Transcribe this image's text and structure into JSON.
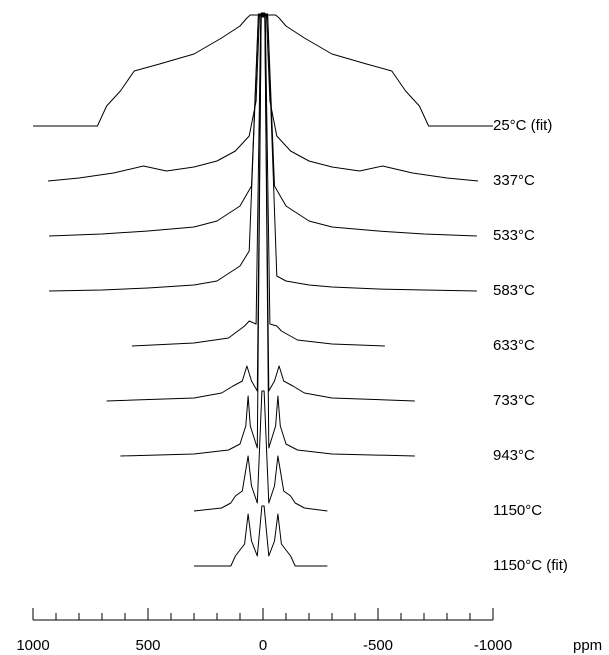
{
  "chart_data": {
    "type": "line",
    "x_label": "ppm",
    "xlim": [
      1000,
      -1000
    ],
    "xticks": [
      1000,
      500,
      0,
      -500,
      -1000
    ],
    "xminorticks": [
      900,
      800,
      700,
      600,
      400,
      300,
      200,
      100,
      -100,
      -200,
      -300,
      -400,
      -600,
      -700,
      -800,
      -900
    ],
    "series": [
      {
        "name": "25°C (fit)",
        "color": "#000000",
        "x": [
          1000,
          720,
          680,
          620,
          560,
          450,
          300,
          180,
          100,
          70,
          55,
          45,
          20,
          0,
          -20,
          -45,
          -55,
          -70,
          -100,
          -180,
          -300,
          -450,
          -560,
          -620,
          -680,
          -720,
          -1000
        ],
        "values": [
          0,
          0,
          20,
          35,
          55,
          62,
          72,
          88,
          100,
          108,
          111,
          111,
          111,
          111,
          111,
          111,
          111,
          108,
          100,
          88,
          72,
          62,
          55,
          35,
          20,
          0,
          0
        ]
      },
      {
        "name": "337°C",
        "color": "#000000",
        "x": [
          935,
          800,
          650,
          520,
          420,
          300,
          200,
          120,
          60,
          30,
          15,
          0,
          -15,
          -30,
          -60,
          -120,
          -200,
          -300,
          -420,
          -520,
          -650,
          -800,
          -935
        ],
        "values": [
          0,
          3,
          8,
          15,
          10,
          14,
          20,
          30,
          45,
          80,
          167,
          167,
          167,
          80,
          45,
          30,
          20,
          14,
          10,
          15,
          8,
          3,
          0
        ]
      },
      {
        "name": "533°C",
        "color": "#000000",
        "x": [
          930,
          700,
          500,
          300,
          200,
          100,
          50,
          20,
          0,
          -20,
          -50,
          -100,
          -200,
          -300,
          -500,
          -700,
          -930
        ],
        "values": [
          0,
          2,
          5,
          9,
          15,
          30,
          50,
          222,
          222,
          222,
          50,
          30,
          15,
          9,
          5,
          2,
          0
        ]
      },
      {
        "name": "583°C",
        "color": "#000000",
        "x": [
          930,
          700,
          500,
          300,
          200,
          100,
          60,
          20,
          0,
          -20,
          -60,
          -100,
          -200,
          -300,
          -500,
          -700,
          -930
        ],
        "values": [
          0,
          1,
          3,
          6,
          10,
          25,
          40,
          275,
          275,
          275,
          15,
          10,
          6,
          4,
          2,
          1,
          0
        ]
      },
      {
        "name": "633°C",
        "color": "#000000",
        "x": [
          570,
          300,
          150,
          80,
          60,
          30,
          10,
          0,
          -10,
          -30,
          -60,
          -80,
          -150,
          -300,
          -530
        ],
        "values": [
          0,
          3,
          8,
          20,
          25,
          22,
          329,
          329,
          329,
          22,
          20,
          15,
          6,
          2,
          0
        ]
      },
      {
        "name": "733°C",
        "color": "#000000",
        "x": [
          680,
          300,
          180,
          130,
          90,
          70,
          50,
          25,
          8,
          0,
          -8,
          -25,
          -50,
          -70,
          -90,
          -130,
          -180,
          -300,
          -660
        ],
        "values": [
          0,
          3,
          8,
          15,
          20,
          35,
          20,
          10,
          386,
          386,
          386,
          10,
          20,
          35,
          20,
          15,
          8,
          3,
          0
        ]
      },
      {
        "name": "943°C",
        "color": "#000000",
        "x": [
          620,
          300,
          150,
          100,
          75,
          65,
          55,
          25,
          8,
          0,
          -8,
          -25,
          -55,
          -65,
          -75,
          -100,
          -150,
          -300,
          -660
        ],
        "values": [
          0,
          2,
          6,
          12,
          30,
          60,
          30,
          8,
          443,
          443,
          443,
          8,
          30,
          60,
          30,
          12,
          6,
          2,
          0
        ]
      },
      {
        "name": "1150°C",
        "color": "#000000",
        "x": [
          300,
          180,
          140,
          120,
          90,
          65,
          50,
          25,
          5,
          0,
          -5,
          -25,
          -50,
          -65,
          -90,
          -120,
          -140,
          -180,
          -280
        ],
        "values": [
          0,
          3,
          8,
          15,
          20,
          55,
          25,
          8,
          120,
          120,
          120,
          8,
          25,
          55,
          20,
          15,
          8,
          3,
          0
        ]
      },
      {
        "name": "1150°C (fit)",
        "color": "#000000",
        "x": [
          300,
          140,
          120,
          100,
          80,
          65,
          50,
          25,
          5,
          0,
          -5,
          -25,
          -50,
          -65,
          -80,
          -100,
          -120,
          -140,
          -280
        ],
        "values": [
          0,
          0,
          10,
          16,
          22,
          52,
          25,
          10,
          60,
          60,
          60,
          10,
          25,
          52,
          22,
          16,
          10,
          0,
          0
        ]
      }
    ]
  }
}
